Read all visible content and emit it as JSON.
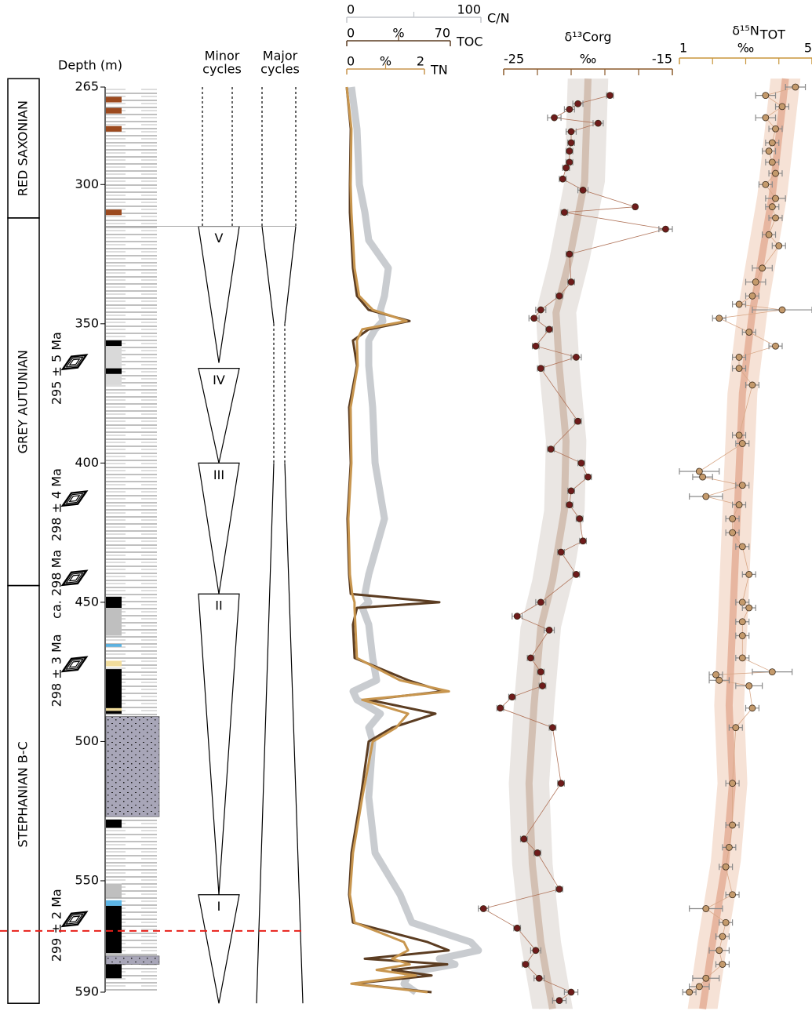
{
  "chart_data": [
    {
      "type": "column",
      "ylabel": "Depth (m)",
      "ylim": [
        265,
        590
      ],
      "yticks": [
        265,
        300,
        350,
        400,
        450,
        500,
        550,
        590
      ],
      "units": [
        {
          "label": "RED SAXONIAN",
          "top": 262,
          "bottom": 312
        },
        {
          "label": "GREY AUTUNIAN",
          "top": 312,
          "bottom": 444
        },
        {
          "label": "STEPHANIAN B-C",
          "top": 444,
          "bottom": 594
        }
      ],
      "ages": [
        {
          "label": "295 ± 5 Ma",
          "depth": 366
        },
        {
          "label": "298 ± 4 Ma",
          "depth": 415
        },
        {
          "label": "ca. 298 Ma",
          "depth": 443.5
        },
        {
          "label": "298 ± 3 Ma",
          "depth": 474.5
        },
        {
          "label": "299 ± 2 Ma",
          "depth": 566
        }
      ],
      "minor_cycles_title": [
        "Minor",
        "cycles"
      ],
      "major_cycles_title": [
        "Major",
        "cycles"
      ],
      "minor_cycles": [
        {
          "label": "V",
          "top": 315,
          "bottom": 364
        },
        {
          "label": "IV",
          "top": 366,
          "bottom": 400
        },
        {
          "label": "III",
          "top": 400,
          "bottom": 447
        },
        {
          "label": "II",
          "top": 447,
          "bottom": 555
        },
        {
          "label": "I",
          "top": 555,
          "bottom": 594
        }
      ],
      "major_cycles": {
        "top": 315,
        "neck_top": 350,
        "neck_bottom": 400,
        "bottom": 594
      },
      "layers": [
        {
          "top": 268.5,
          "bottom": 270.5,
          "color": "#9c4a1f"
        },
        {
          "top": 272.5,
          "bottom": 274.5,
          "color": "#9c4a1f"
        },
        {
          "top": 279,
          "bottom": 281,
          "color": "#9c4a1f"
        },
        {
          "top": 309,
          "bottom": 311,
          "color": "#9c4a1f"
        },
        {
          "top": 356,
          "bottom": 358,
          "color": "#000000"
        },
        {
          "top": 358,
          "bottom": 372,
          "color": "#d9d9d9"
        },
        {
          "top": 366,
          "bottom": 368,
          "color": "#000000"
        },
        {
          "top": 448,
          "bottom": 452,
          "color": "#000000"
        },
        {
          "top": 452,
          "bottom": 462,
          "color": "#bfbfbf"
        },
        {
          "top": 465,
          "bottom": 466,
          "color": "#5bb4e5"
        },
        {
          "top": 471,
          "bottom": 473,
          "color": "#f1dc9c"
        },
        {
          "top": 474,
          "bottom": 490,
          "color": "#000000"
        },
        {
          "top": 488,
          "bottom": 489,
          "color": "#f1dc9c"
        },
        {
          "top": 491,
          "bottom": 527,
          "color": "#a8a6b8"
        },
        {
          "top": 528,
          "bottom": 531,
          "color": "#000000"
        },
        {
          "top": 551,
          "bottom": 556,
          "color": "#bfbfbf"
        },
        {
          "top": 557,
          "bottom": 559,
          "color": "#5bb4e5"
        },
        {
          "top": 559,
          "bottom": 576,
          "color": "#000000"
        },
        {
          "top": 577,
          "bottom": 580,
          "color": "#a8a6b8"
        },
        {
          "top": 580,
          "bottom": 585,
          "color": "#000000"
        }
      ],
      "boundary_depth": 568
    },
    {
      "type": "line",
      "depth": [
        265,
        280,
        300,
        310,
        320,
        330,
        340,
        345,
        349,
        352,
        356,
        365,
        380,
        400,
        420,
        440,
        447,
        450,
        452,
        458,
        470,
        478,
        482,
        485,
        490,
        495,
        500,
        520,
        540,
        555,
        565,
        572,
        575,
        578,
        580,
        582,
        584,
        587,
        590
      ],
      "series": [
        {
          "name": "C/N",
          "color": "#c3c6cb",
          "xlim": [
            0,
            100
          ],
          "xticks": [
            0,
            100
          ],
          "minor_xticks": [
            50
          ],
          "values": [
            3.5,
            7.6,
            9.4,
            13.5,
            16.4,
            31,
            28.1,
            25.1,
            26.9,
            21.1,
            16.4,
            16.4,
            19.3,
            21.1,
            28.1,
            16.4,
            13.5,
            16.4,
            11.7,
            16.4,
            19.3,
            22.2,
            4.7,
            7.6,
            25.1,
            16.4,
            19.3,
            16.4,
            21.1,
            39.8,
            48.5,
            92.4,
            98.2,
            69,
            80.7,
            57.3,
            45.6,
            42.7,
            51.5
          ]
        },
        {
          "name": "TOC",
          "color": "#5c3d22",
          "xlim": [
            0,
            70
          ],
          "xticks": [
            0,
            70
          ],
          "minor_xticks": [
            35
          ],
          "unit": "%",
          "values": [
            0,
            2.7,
            2.1,
            2.1,
            3.2,
            4.2,
            6.9,
            14.8,
            42.4,
            14.8,
            4.2,
            6.9,
            1.6,
            2.7,
            0.5,
            1.6,
            2.7,
            62.6,
            6.9,
            4.2,
            5.3,
            41.4,
            65.2,
            14.8,
            59.9,
            30.8,
            14.8,
            9.5,
            3.2,
            1.6,
            4.2,
            54.6,
            68.9,
            12.2,
            67.9,
            30.8,
            57.3,
            4.2,
            57.3
          ]
        },
        {
          "name": "TN",
          "color": "#c8964f",
          "xlim": [
            0,
            2
          ],
          "xticks": [
            0,
            2
          ],
          "minor_xticks": [
            1
          ],
          "unit": "%",
          "values": [
            0,
            0.12,
            0.1,
            0.12,
            0.16,
            0.2,
            0.32,
            0.67,
            1.54,
            0.4,
            0.26,
            0.28,
            0.1,
            0.12,
            0.04,
            0.08,
            0.14,
            0.2,
            0.2,
            0.22,
            0.26,
            1.37,
            2.63,
            0.4,
            1.58,
            1.27,
            0.67,
            0.4,
            0.16,
            0.08,
            0.2,
            1.47,
            1.58,
            1.17,
            1.62,
            0.77,
            1.78,
            0.12,
            2.08
          ]
        }
      ]
    },
    {
      "type": "scatter",
      "title": "δ¹³Corg",
      "unit": "‰",
      "xlim": [
        -25,
        -15
      ],
      "xticks": [
        -25,
        -15
      ],
      "minor_xticks": [
        -23,
        -21,
        -19,
        -17
      ],
      "axis_color": "#8b5a2b",
      "color": "#6e1b1b",
      "line_color": "#b0745a",
      "band_color": "#e6e2de",
      "trend_color": "#cdb7a6",
      "depth": [
        268,
        271,
        273,
        276,
        278,
        281,
        285,
        288,
        292,
        294,
        298,
        302,
        308,
        310,
        316,
        325,
        335,
        340,
        345,
        348,
        352,
        358,
        362,
        366,
        385,
        395,
        400,
        405,
        410,
        415,
        420,
        428,
        432,
        440,
        450,
        455,
        460,
        470,
        475,
        480,
        484,
        488,
        495,
        515,
        535,
        540,
        553,
        560,
        567,
        575,
        580,
        585,
        590,
        593
      ],
      "values": [
        -18.7,
        -20.6,
        -21.1,
        -22.0,
        -19.4,
        -21.0,
        -21.0,
        -21.1,
        -21.1,
        -21.3,
        -21.5,
        -20.3,
        -17.2,
        -21.4,
        -15.4,
        -21.1,
        -21.0,
        -21.7,
        -22.8,
        -23.2,
        -22.3,
        -23.1,
        -20.7,
        -22.8,
        -20.6,
        -22.2,
        -20.4,
        -20.0,
        -21.0,
        -21.1,
        -20.5,
        -20.3,
        -21.6,
        -20.7,
        -22.8,
        -24.2,
        -22.3,
        -23.4,
        -22.8,
        -22.7,
        -24.5,
        -25.2,
        -22.1,
        -21.6,
        -23.8,
        -23.0,
        -21.7,
        -26.2,
        -24.2,
        -23.1,
        -23.7,
        -22.9,
        -21.0,
        -21.7
      ],
      "errors": [
        0.2,
        0.3,
        0.3,
        0.4,
        0.3,
        0.3,
        0.2,
        0.2,
        0.2,
        0.2,
        0.2,
        0.3,
        0.1,
        0.2,
        0.4,
        0.2,
        0.2,
        0.2,
        0.3,
        0.3,
        0.2,
        0.2,
        0.3,
        0.2,
        0.2,
        0.2,
        0.2,
        0.2,
        0.2,
        0.2,
        0.2,
        0.2,
        0.2,
        0.2,
        0.3,
        0.3,
        0.3,
        0.2,
        0.2,
        0.2,
        0.2,
        0.2,
        0.2,
        0.2,
        0.2,
        0.2,
        0.2,
        0.3,
        0.2,
        0.3,
        0.2,
        0.3,
        0.4,
        0.4
      ],
      "trend": {
        "depth": [
          262,
          299,
          327,
          346,
          366,
          392,
          417,
          442,
          459,
          487,
          515,
          544,
          572,
          596
        ],
        "values": [
          -20,
          -20.2,
          -21.1,
          -21.9,
          -21.7,
          -21.3,
          -21.4,
          -22.1,
          -22.8,
          -23.2,
          -23.5,
          -23.3,
          -22.8,
          -22.1
        ],
        "band": 1.2
      }
    },
    {
      "type": "scatter",
      "title": "δ¹⁵N",
      "title_sub": "TOT",
      "unit": "‰",
      "xlim": [
        1,
        5
      ],
      "xticks": [
        1,
        5
      ],
      "minor_xticks": [
        2,
        3,
        4
      ],
      "axis_color": "#c8963c",
      "color": "#c49a6c",
      "line_color": "#d8a888",
      "band_color": "#f5ddcf",
      "trend_color": "#e3ab92",
      "depth": [
        265,
        268,
        272,
        276,
        280,
        285,
        288,
        292,
        296,
        300,
        305,
        308,
        312,
        318,
        322,
        330,
        335,
        340,
        343,
        345,
        348,
        353,
        358,
        362,
        366,
        372,
        390,
        393,
        403,
        405,
        408,
        412,
        415,
        420,
        425,
        430,
        440,
        450,
        452,
        457,
        462,
        470,
        475,
        476,
        478,
        480,
        488,
        495,
        515,
        530,
        538,
        545,
        555,
        560,
        565,
        570,
        575,
        580,
        585,
        588,
        590
      ],
      "values": [
        4.5,
        3.6,
        4.1,
        3.6,
        3.9,
        3.8,
        3.7,
        3.8,
        3.9,
        3.6,
        3.9,
        3.8,
        3.9,
        3.7,
        4.0,
        3.5,
        3.3,
        3.2,
        2.8,
        4.1,
        2.2,
        3.1,
        3.9,
        2.8,
        2.8,
        3.2,
        2.8,
        2.9,
        1.6,
        1.7,
        2.9,
        1.8,
        2.8,
        2.6,
        2.6,
        2.9,
        3.1,
        2.9,
        3.1,
        2.9,
        2.9,
        2.9,
        3.8,
        2.1,
        2.2,
        3.1,
        3.2,
        2.7,
        2.6,
        2.6,
        2.5,
        2.4,
        2.6,
        1.8,
        2.4,
        2.3,
        2.2,
        2.3,
        1.8,
        1.6,
        1.3
      ],
      "errors": [
        0.3,
        0.3,
        0.2,
        0.3,
        0.2,
        0.2,
        0.2,
        0.2,
        0.2,
        0.2,
        0.3,
        0.2,
        0.2,
        0.2,
        0.2,
        0.3,
        0.3,
        0.2,
        0.2,
        0.9,
        0.2,
        0.2,
        0.2,
        0.2,
        0.2,
        0.2,
        0.2,
        0.2,
        0.6,
        0.3,
        0.2,
        0.5,
        0.2,
        0.2,
        0.2,
        0.2,
        0.2,
        0.2,
        0.2,
        0.2,
        0.2,
        0.2,
        0.6,
        0.2,
        0.3,
        0.4,
        0.2,
        0.2,
        0.2,
        0.2,
        0.2,
        0.2,
        0.2,
        0.5,
        0.2,
        0.2,
        0.3,
        0.2,
        0.4,
        0.3,
        0.2
      ],
      "trend": {
        "depth": [
          262,
          304,
          346,
          375,
          403,
          431,
          459,
          487,
          515,
          543,
          572,
          596
        ],
        "values": [
          4.2,
          3.8,
          3.2,
          2.9,
          2.8,
          2.7,
          2.6,
          2.5,
          2.6,
          2.4,
          2.0,
          1.7
        ],
        "band": 0.45
      }
    }
  ]
}
